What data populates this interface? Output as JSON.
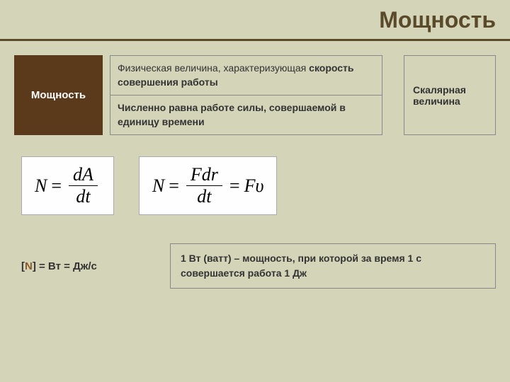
{
  "header": {
    "title": "Мощность"
  },
  "topRow": {
    "leftBox": "Мощность",
    "def1": "Физическая величина, характеризующая скорость совершения работы",
    "def2": "Численно равна работе силы, совершаемой в единицу времени",
    "scalar": "Скалярная величина"
  },
  "formulas": {
    "f1": {
      "left": "N",
      "num": "dA",
      "den": "dt"
    },
    "f2": {
      "left": "N",
      "num": "Fdr",
      "den": "dt",
      "right": "Fυ"
    }
  },
  "bottom": {
    "unitLabel_open": "[",
    "unitLabel_N": "N",
    "unitLabel_close": "] = Вт = Дж/с",
    "wattDef": "1 Вт (ватт) – мощность, при которой за время 1 с совершается работа 1 Дж"
  },
  "colors": {
    "background": "#d4d4b8",
    "headerText": "#5a4a2a",
    "brownBox": "#5a3a1a",
    "border": "#888888",
    "formulaBg": "#fefefe"
  }
}
